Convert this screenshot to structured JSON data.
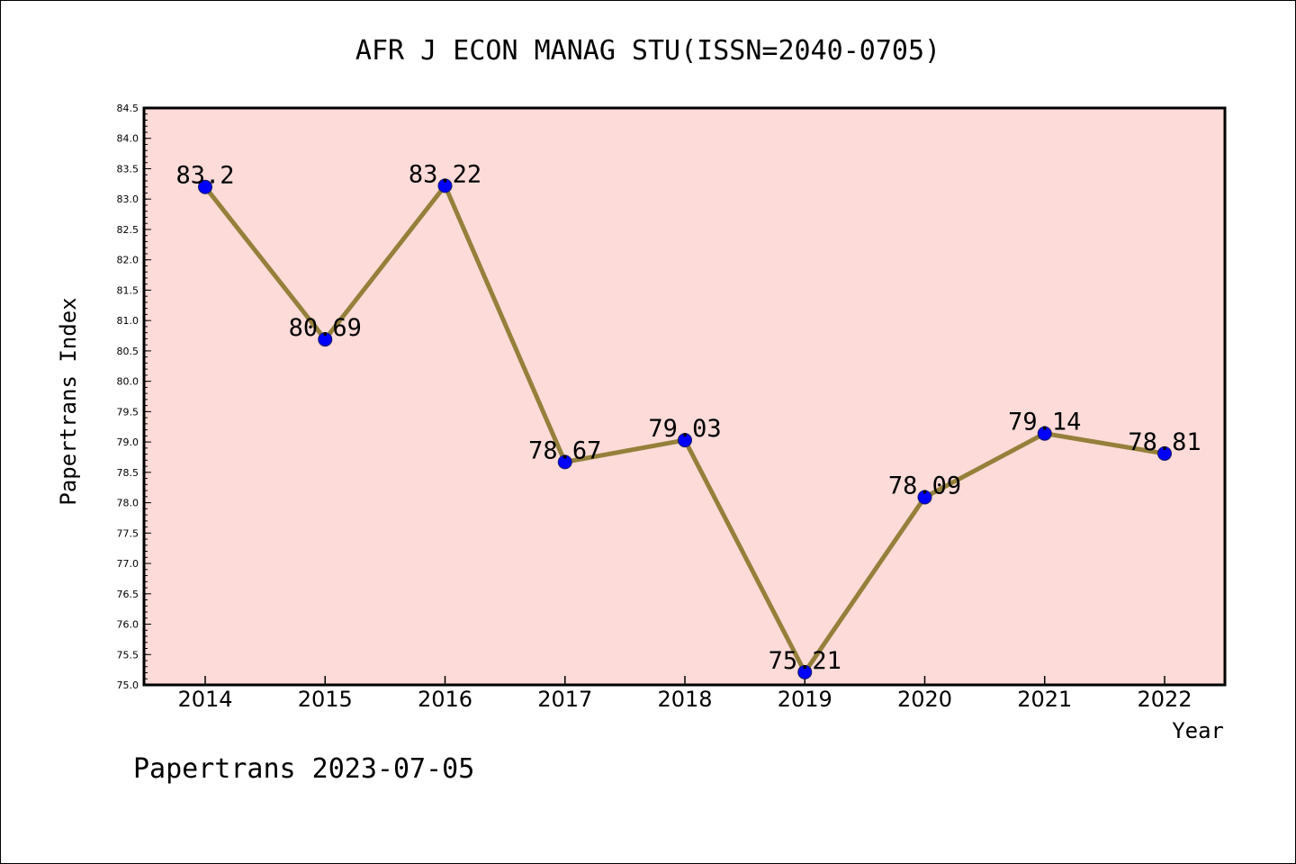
{
  "chart_data": {
    "type": "line",
    "title": "AFR J ECON MANAG STU(ISSN=2040-0705)",
    "xlabel": "Year",
    "ylabel": "Papertrans Index",
    "categories": [
      "2014",
      "2015",
      "2016",
      "2017",
      "2018",
      "2019",
      "2020",
      "2021",
      "2022"
    ],
    "series": [
      {
        "values": [
          83.2,
          80.69,
          83.22,
          78.67,
          79.03,
          75.21,
          78.09,
          79.14,
          78.81
        ],
        "labels": [
          "83.2",
          "80.69",
          "83.22",
          "78.67",
          "79.03",
          "75.21",
          "78.09",
          "79.14",
          "78.81"
        ]
      }
    ],
    "ylim": [
      75.0,
      84.5
    ],
    "yticks": [
      "75.0",
      "75.5",
      "76.0",
      "76.5",
      "77.0",
      "77.5",
      "78.0",
      "78.5",
      "79.0",
      "79.5",
      "80.0",
      "80.5",
      "81.0",
      "81.5",
      "82.0",
      "82.5",
      "83.0",
      "83.5",
      "84.0",
      "84.5"
    ],
    "grid": false,
    "legend": "none",
    "colors": {
      "plot_background": "#fddbd8",
      "line": "#94803a",
      "marker": "#0000ff"
    }
  },
  "footer": {
    "text": "Papertrans 2023-07-05"
  }
}
